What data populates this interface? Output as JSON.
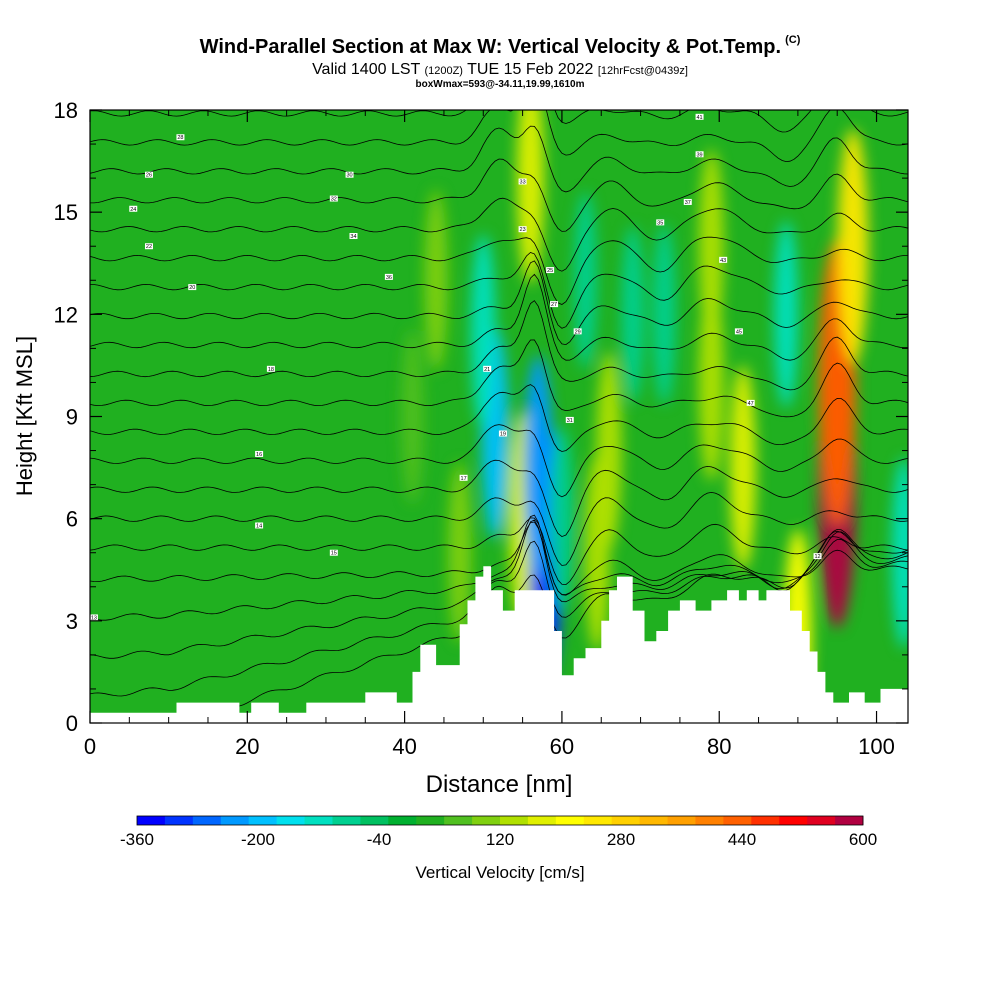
{
  "header": {
    "title": "Wind-Parallel Section at Max W: Vertical Velocity & Pot.Temp.",
    "title_mark": "(C)",
    "subtitle_a": "Valid 1400 LST ",
    "subtitle_b": "(1200Z)",
    "subtitle_c": " TUE 15 Feb 2022 ",
    "subtitle_d": "[12hrFcst@0439z]",
    "subtitle2": "boxWmax=593@-34.11,19.99,1610m"
  },
  "chart_data": {
    "type": "heatmap",
    "xlabel": "Distance [nm]",
    "ylabel": "Height [Kft MSL]",
    "xlim": [
      0,
      104
    ],
    "ylim": [
      0,
      18
    ],
    "x_ticks": [
      0,
      20,
      40,
      60,
      80,
      100
    ],
    "x_tick_labels": [
      "0",
      "20",
      "40",
      "60",
      "80",
      "100"
    ],
    "y_ticks": [
      0,
      3,
      6,
      9,
      12,
      15,
      18
    ],
    "y_tick_labels": [
      "0",
      "3",
      "6",
      "9",
      "12",
      "15",
      "18"
    ],
    "colorbar": {
      "label": "Vertical Velocity [cm/s]",
      "min": -360,
      "max": 600,
      "tick_values": [
        -360,
        -200,
        -40,
        120,
        280,
        440,
        600
      ],
      "tick_labels": [
        "-360",
        "-200",
        "-40",
        "120",
        "280",
        "440",
        "600"
      ],
      "colors": [
        "#0000ff",
        "#0033ff",
        "#0066ff",
        "#0099ff",
        "#00c0ff",
        "#00e0ee",
        "#00e0c0",
        "#00d090",
        "#00c060",
        "#00b030",
        "#20b020",
        "#50c020",
        "#80d010",
        "#b0e000",
        "#e0f000",
        "#ffff00",
        "#ffe800",
        "#ffd000",
        "#ffb800",
        "#ffa000",
        "#ff8000",
        "#ff6000",
        "#ff3000",
        "#ff0000",
        "#e00020",
        "#b00040"
      ]
    },
    "w_features": [
      {
        "x": 95,
        "z": 7,
        "value": 593
      },
      {
        "x": 95,
        "z": 10,
        "value": 450
      },
      {
        "x": 97,
        "z": 14,
        "value": 250
      },
      {
        "x": 83,
        "z": 7.5,
        "value": 160
      },
      {
        "x": 79,
        "z": 10,
        "value": 140
      },
      {
        "x": 79,
        "z": 14,
        "value": 130
      },
      {
        "x": 66,
        "z": 8,
        "value": 140
      },
      {
        "x": 64.5,
        "z": 5,
        "value": 140
      },
      {
        "x": 55,
        "z": 6,
        "value": 180
      },
      {
        "x": 56,
        "z": 16,
        "value": 180
      },
      {
        "x": 58,
        "z": 5,
        "value": -320
      },
      {
        "x": 57,
        "z": 7.5,
        "value": -220
      },
      {
        "x": 51.5,
        "z": 8.5,
        "value": -180
      },
      {
        "x": 50,
        "z": 11.5,
        "value": -130
      },
      {
        "x": 63,
        "z": 13,
        "value": -80
      },
      {
        "x": 69,
        "z": 12,
        "value": -80
      },
      {
        "x": 73,
        "z": 12,
        "value": -90
      },
      {
        "x": 88.5,
        "z": 12,
        "value": -110
      },
      {
        "x": 103.5,
        "z": 5,
        "value": -120
      },
      {
        "x": 47,
        "z": 5,
        "value": 90
      },
      {
        "x": 44,
        "z": 13,
        "value": 90
      },
      {
        "x": 41,
        "z": 9,
        "value": 70
      },
      {
        "x": 60,
        "z": 6,
        "value": -100
      },
      {
        "x": 90,
        "z": 2.5,
        "value": 200
      }
    ],
    "terrain": [
      [
        0,
        0.3
      ],
      [
        11,
        0.3
      ],
      [
        11,
        0.6
      ],
      [
        19,
        0.6
      ],
      [
        19,
        0.3
      ],
      [
        20.5,
        0.3
      ],
      [
        20.5,
        0.6
      ],
      [
        24,
        0.6
      ],
      [
        24,
        0.3
      ],
      [
        27.5,
        0.3
      ],
      [
        27.5,
        0.6
      ],
      [
        35,
        0.6
      ],
      [
        35,
        0.9
      ],
      [
        39,
        0.9
      ],
      [
        39,
        0.6
      ],
      [
        41,
        0.6
      ],
      [
        41,
        1.5
      ],
      [
        42,
        1.5
      ],
      [
        42,
        2.3
      ],
      [
        44,
        2.3
      ],
      [
        44,
        1.7
      ],
      [
        47,
        1.7
      ],
      [
        47,
        2.9
      ],
      [
        48,
        2.9
      ],
      [
        48,
        3.6
      ],
      [
        49,
        3.6
      ],
      [
        49,
        4.3
      ],
      [
        50,
        4.3
      ],
      [
        50,
        4.6
      ],
      [
        51,
        4.6
      ],
      [
        51,
        3.9
      ],
      [
        52.5,
        3.9
      ],
      [
        52.5,
        3.3
      ],
      [
        54,
        3.3
      ],
      [
        54,
        3.9
      ],
      [
        59,
        3.9
      ],
      [
        59,
        2.7
      ],
      [
        60,
        2.7
      ],
      [
        60,
        1.4
      ],
      [
        61.5,
        1.4
      ],
      [
        61.5,
        1.9
      ],
      [
        63,
        1.9
      ],
      [
        63,
        2.2
      ],
      [
        65,
        2.2
      ],
      [
        65,
        3.0
      ],
      [
        66,
        3.0
      ],
      [
        66,
        3.9
      ],
      [
        67,
        3.9
      ],
      [
        67,
        4.3
      ],
      [
        69,
        4.3
      ],
      [
        69,
        3.3
      ],
      [
        70.5,
        3.3
      ],
      [
        70.5,
        2.4
      ],
      [
        72,
        2.4
      ],
      [
        72,
        2.7
      ],
      [
        73.5,
        2.7
      ],
      [
        73.5,
        3.3
      ],
      [
        75,
        3.3
      ],
      [
        75,
        3.6
      ],
      [
        77,
        3.6
      ],
      [
        77,
        3.3
      ],
      [
        79,
        3.3
      ],
      [
        79,
        3.6
      ],
      [
        81,
        3.6
      ],
      [
        81,
        3.9
      ],
      [
        82.5,
        3.9
      ],
      [
        82.5,
        3.6
      ],
      [
        83.5,
        3.6
      ],
      [
        83.5,
        3.9
      ],
      [
        85,
        3.9
      ],
      [
        85,
        3.6
      ],
      [
        86,
        3.6
      ],
      [
        86,
        3.9
      ],
      [
        89,
        3.9
      ],
      [
        89,
        3.3
      ],
      [
        90.5,
        3.3
      ],
      [
        90.5,
        2.7
      ],
      [
        91.5,
        2.7
      ],
      [
        91.5,
        2.1
      ],
      [
        92.5,
        2.1
      ],
      [
        92.5,
        1.5
      ],
      [
        93.5,
        1.5
      ],
      [
        93.5,
        0.9
      ],
      [
        94.5,
        0.9
      ],
      [
        94.5,
        0.6
      ],
      [
        96.5,
        0.6
      ],
      [
        96.5,
        0.9
      ],
      [
        98.5,
        0.9
      ],
      [
        98.5,
        0.6
      ],
      [
        100.5,
        0.6
      ],
      [
        100.5,
        1.0
      ],
      [
        104,
        1.0
      ]
    ],
    "theta_contours": 21,
    "contour_labels": [
      {
        "x": 0.5,
        "z": 3.1,
        "text": "13"
      },
      {
        "x": 21.5,
        "z": 5.8,
        "text": "14"
      },
      {
        "x": 31,
        "z": 5.0,
        "text": "15"
      },
      {
        "x": 21.5,
        "z": 7.9,
        "text": "16"
      },
      {
        "x": 23,
        "z": 10.4,
        "text": "18"
      },
      {
        "x": 13,
        "z": 12.8,
        "text": "20"
      },
      {
        "x": 7.5,
        "z": 14,
        "text": "22"
      },
      {
        "x": 5.5,
        "z": 15.1,
        "text": "24"
      },
      {
        "x": 7.5,
        "z": 16.1,
        "text": "26"
      },
      {
        "x": 11.5,
        "z": 17.2,
        "text": "28"
      },
      {
        "x": 33,
        "z": 16.1,
        "text": "30"
      },
      {
        "x": 31,
        "z": 15.4,
        "text": "32"
      },
      {
        "x": 33.5,
        "z": 14.3,
        "text": "34"
      },
      {
        "x": 38,
        "z": 13.1,
        "text": "36"
      },
      {
        "x": 47.5,
        "z": 7.2,
        "text": "17"
      },
      {
        "x": 52.5,
        "z": 8.5,
        "text": "19"
      },
      {
        "x": 50.5,
        "z": 10.4,
        "text": "21"
      },
      {
        "x": 55,
        "z": 14.5,
        "text": "23"
      },
      {
        "x": 58.5,
        "z": 13.3,
        "text": "25"
      },
      {
        "x": 59,
        "z": 12.3,
        "text": "27"
      },
      {
        "x": 62,
        "z": 11.5,
        "text": "29"
      },
      {
        "x": 61,
        "z": 8.9,
        "text": "31"
      },
      {
        "x": 55,
        "z": 15.9,
        "text": "33"
      },
      {
        "x": 72.5,
        "z": 14.7,
        "text": "35"
      },
      {
        "x": 76,
        "z": 15.3,
        "text": "37"
      },
      {
        "x": 77.5,
        "z": 16.7,
        "text": "39"
      },
      {
        "x": 77.5,
        "z": 17.8,
        "text": "41"
      },
      {
        "x": 80.5,
        "z": 13.6,
        "text": "43"
      },
      {
        "x": 82.5,
        "z": 11.5,
        "text": "45"
      },
      {
        "x": 84,
        "z": 9.4,
        "text": "47"
      },
      {
        "x": 92.5,
        "z": 4.9,
        "text": "12"
      }
    ]
  }
}
